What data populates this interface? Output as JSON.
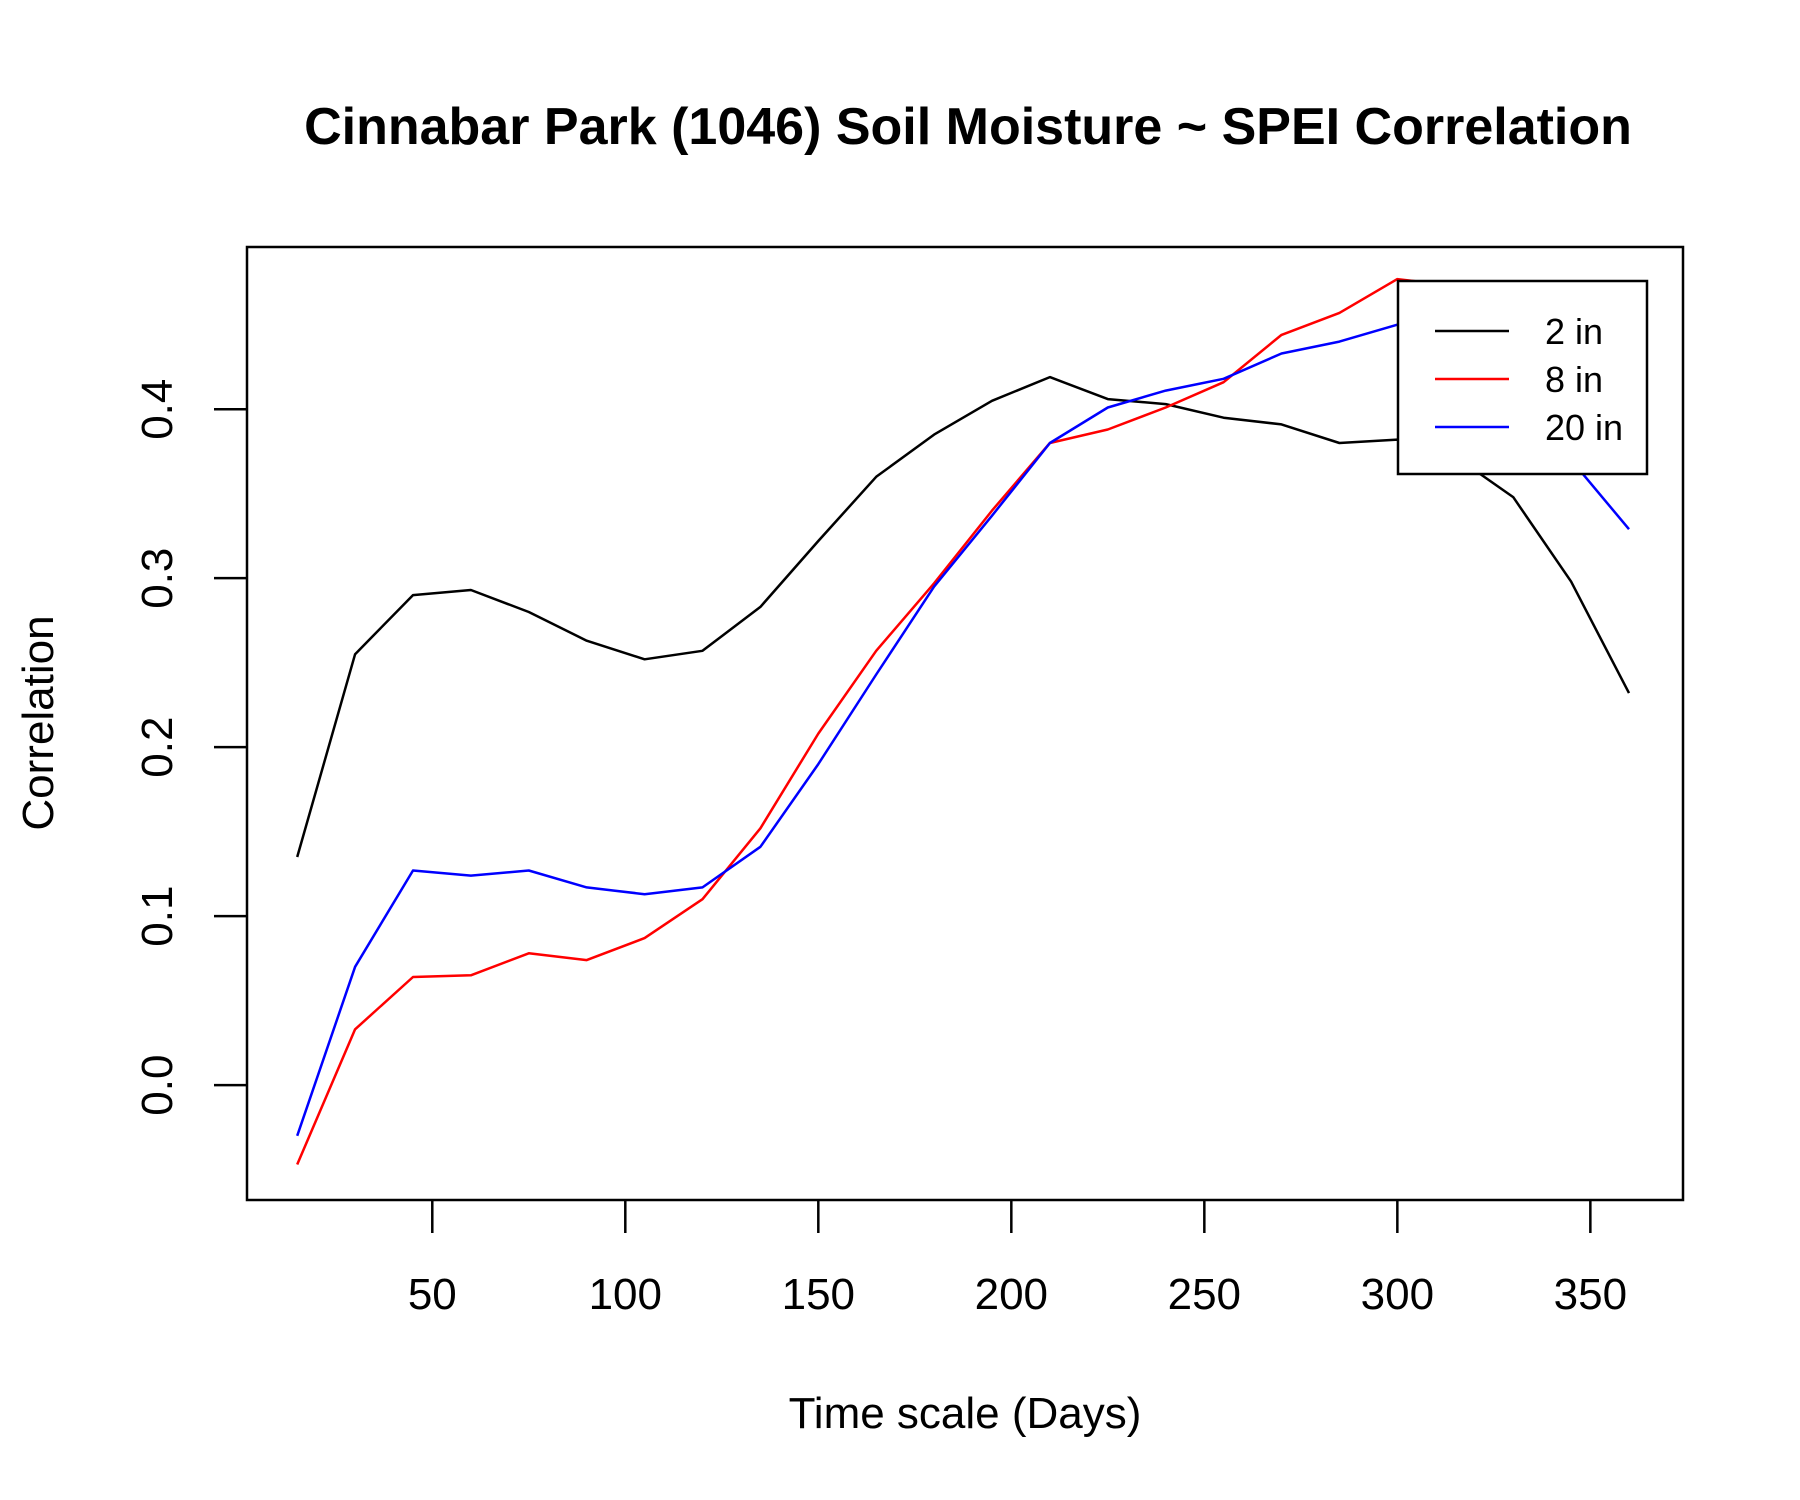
{
  "chart_data": {
    "type": "line",
    "title": "Cinnabar Park (1046) Soil Moisture ~ SPEI Correlation",
    "xlabel": "Time scale (Days)",
    "ylabel": "Correlation",
    "xlim": [
      2,
      374
    ],
    "ylim": [
      -0.068,
      0.496
    ],
    "xticks": [
      50,
      100,
      150,
      200,
      250,
      300,
      350
    ],
    "xtick_labels": [
      "50",
      "100",
      "150",
      "200",
      "250",
      "300",
      "350"
    ],
    "yticks": [
      0.0,
      0.1,
      0.2,
      0.3,
      0.4
    ],
    "ytick_labels": [
      "0.0",
      "0.1",
      "0.2",
      "0.3",
      "0.4"
    ],
    "grid": false,
    "legend_position": "top-right",
    "x": [
      15,
      30,
      45,
      60,
      75,
      90,
      105,
      120,
      135,
      150,
      165,
      180,
      195,
      210,
      225,
      240,
      255,
      270,
      285,
      300,
      315,
      330,
      345,
      360
    ],
    "series": [
      {
        "name": "2 in",
        "color": "#000000",
        "values": [
          0.135,
          0.255,
          0.29,
          0.293,
          0.28,
          0.263,
          0.252,
          0.257,
          0.283,
          0.322,
          0.36,
          0.385,
          0.405,
          0.419,
          0.406,
          0.403,
          0.395,
          0.391,
          0.38,
          0.382,
          0.372,
          0.348,
          0.298,
          0.232
        ]
      },
      {
        "name": "8 in",
        "color": "#ff0000",
        "values": [
          -0.047,
          0.033,
          0.064,
          0.065,
          0.078,
          0.074,
          0.087,
          0.11,
          0.152,
          0.208,
          0.257,
          0.297,
          0.34,
          0.38,
          0.388,
          0.401,
          0.416,
          0.444,
          0.457,
          0.477,
          0.473,
          0.455,
          0.415,
          0.37
        ]
      },
      {
        "name": "20 in",
        "color": "#0000ff",
        "values": [
          -0.03,
          0.07,
          0.127,
          0.124,
          0.127,
          0.117,
          0.113,
          0.117,
          0.141,
          0.19,
          0.243,
          0.295,
          0.337,
          0.38,
          0.401,
          0.411,
          0.418,
          0.433,
          0.44,
          0.45,
          0.43,
          0.392,
          0.37,
          0.329
        ]
      }
    ]
  }
}
